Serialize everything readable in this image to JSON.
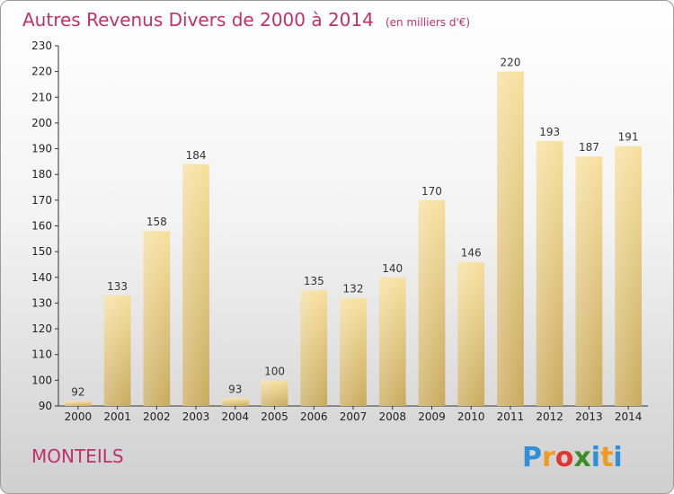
{
  "chart_data": {
    "type": "bar",
    "title": "Autres Revenus Divers de 2000 à 2014",
    "subtitle": "(en milliers d'€)",
    "categories": [
      "2000",
      "2001",
      "2002",
      "2003",
      "2004",
      "2005",
      "2006",
      "2007",
      "2008",
      "2009",
      "2010",
      "2011",
      "2012",
      "2013",
      "2014"
    ],
    "values": [
      92,
      133,
      158,
      184,
      93,
      100,
      135,
      132,
      140,
      170,
      146,
      220,
      193,
      187,
      191
    ],
    "xlabel": "",
    "ylabel": "",
    "ylim": [
      90,
      230
    ],
    "yticks": [
      90,
      100,
      110,
      120,
      130,
      140,
      150,
      160,
      170,
      180,
      190,
      200,
      210,
      220,
      230
    ],
    "grid": false,
    "bar_color": "#e6c878",
    "legend": "none"
  },
  "location_label": "MONTEILS",
  "brand": {
    "letters": [
      "P",
      "r",
      "o",
      "x",
      "i",
      "t",
      "i"
    ],
    "colors": [
      "#2f8fd8",
      "#f29a1f",
      "#e3372e",
      "#3b8f2b",
      "#2f8fd8",
      "#f29a1f",
      "#2f8fd8"
    ]
  }
}
